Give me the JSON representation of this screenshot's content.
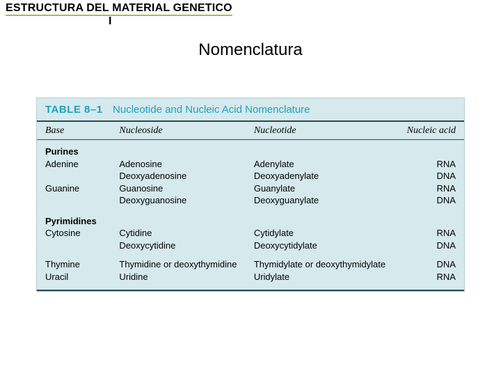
{
  "colors": {
    "title_underline": "#9fc24a",
    "table_bg": "#d6e9ed",
    "table_accent": "#1aa2c0",
    "table_border": "#b8ccd6",
    "rule_dark": "#2a4a52"
  },
  "slide": {
    "title_line1": "ESTRUCTURA DEL MATERIAL GENETICO",
    "title_line2": "I",
    "section_title": "Nomenclatura"
  },
  "table": {
    "label": "TABLE 8–1",
    "caption": "Nucleotide and Nucleic Acid Nomenclature",
    "headers": {
      "base": "Base",
      "nucleoside": "Nucleoside",
      "nucleotide": "Nucleotide",
      "nucleic_acid": "Nucleic acid"
    },
    "groups": [
      {
        "name": "Purines",
        "rows": [
          {
            "base": "Adenine",
            "nucleoside": "Adenosine",
            "nucleotide": "Adenylate",
            "acid": "RNA"
          },
          {
            "base": "",
            "nucleoside": "Deoxyadenosine",
            "nucleotide": "Deoxyadenylate",
            "acid": "DNA"
          },
          {
            "base": "Guanine",
            "nucleoside": "Guanosine",
            "nucleotide": "Guanylate",
            "acid": "RNA"
          },
          {
            "base": "",
            "nucleoside": "Deoxyguanosine",
            "nucleotide": "Deoxyguanylate",
            "acid": "DNA"
          }
        ]
      },
      {
        "name": "Pyrimidines",
        "rows": [
          {
            "base": "Cytosine",
            "nucleoside": "Cytidine",
            "nucleotide": "Cytidylate",
            "acid": "RNA"
          },
          {
            "base": "",
            "nucleoside": "Deoxycytidine",
            "nucleotide": "Deoxycytidylate",
            "acid": "DNA"
          },
          {
            "base": "Thymine",
            "nucleoside": "Thymidine or deoxythymidine",
            "nucleotide": "Thymidylate or deoxythymidylate",
            "acid": "DNA"
          },
          {
            "base": "Uracil",
            "nucleoside": "Uridine",
            "nucleotide": "Uridylate",
            "acid": "RNA"
          }
        ]
      }
    ]
  }
}
